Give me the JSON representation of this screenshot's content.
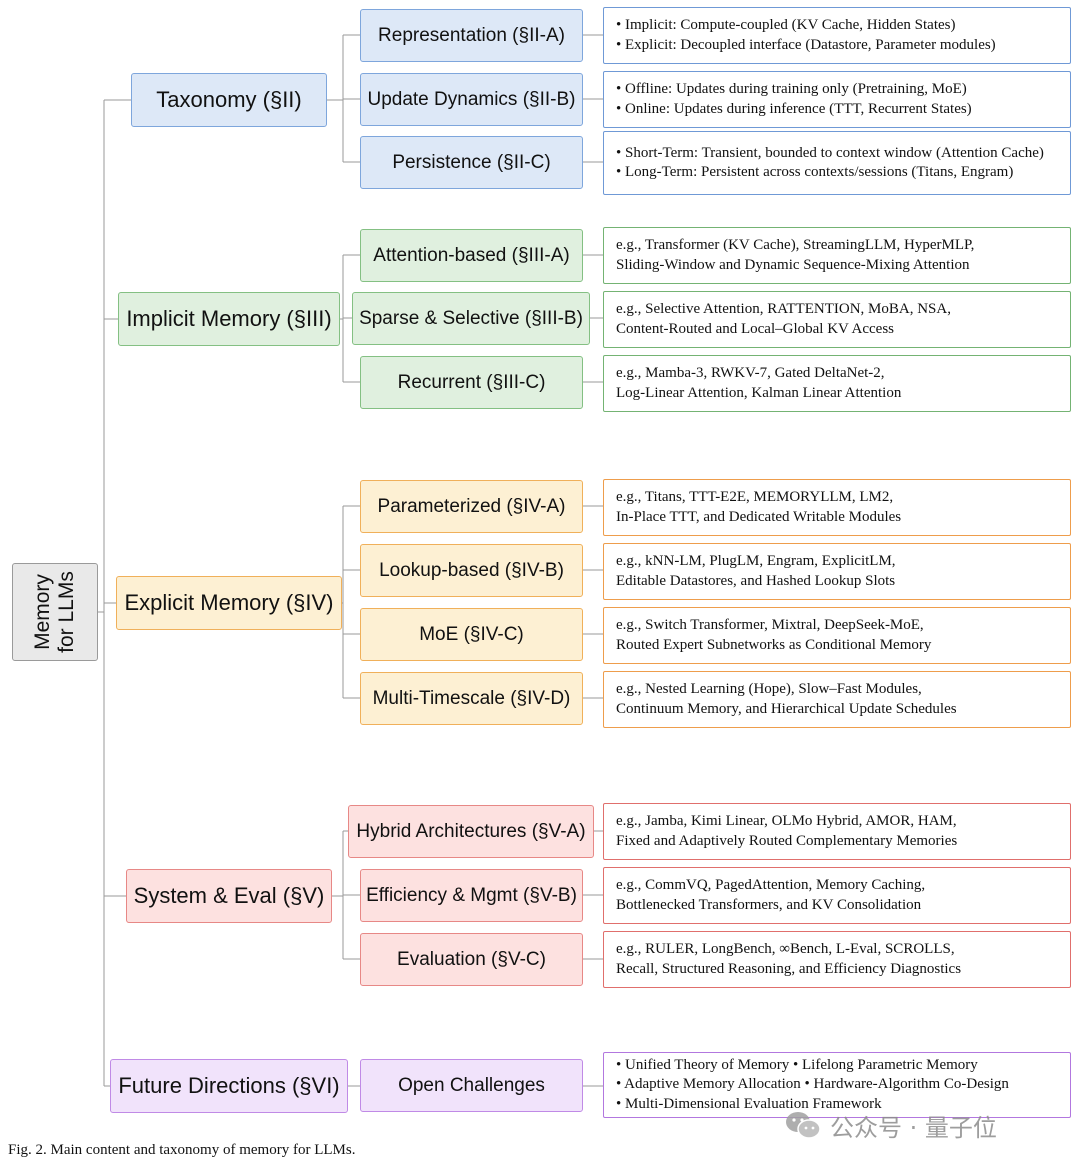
{
  "root": {
    "line1": "Memory",
    "line2": "for LLMs"
  },
  "branches": [
    {
      "id": "taxonomy",
      "label": "Taxonomy (§II)",
      "color": "blue",
      "children": [
        {
          "label": "Representation (§II-A)",
          "leaf": [
            "• Implicit: Compute-coupled (KV Cache, Hidden States)",
            "• Explicit: Decoupled interface (Datastore, Parameter modules)"
          ]
        },
        {
          "label": "Update Dynamics (§II-B)",
          "leaf": [
            "• Offline: Updates during training only (Pretraining, MoE)",
            "• Online: Updates during inference (TTT, Recurrent States)"
          ]
        },
        {
          "label": "Persistence (§II-C)",
          "leaf": [
            "• Short-Term: Transient, bounded to context window (Attention Cache)",
            "• Long-Term: Persistent across contexts/sessions (Titans, Engram)"
          ]
        }
      ]
    },
    {
      "id": "implicit",
      "label": "Implicit Memory (§III)",
      "color": "green",
      "children": [
        {
          "label": "Attention-based (§III-A)",
          "leaf": [
            "e.g., Transformer (KV Cache), StreamingLLM, HyperMLP,",
            "Sliding-Window and Dynamic Sequence-Mixing Attention"
          ]
        },
        {
          "label": "Sparse & Selective (§III-B)",
          "leaf": [
            "e.g., Selective Attention, RATTENTION, MoBA, NSA,",
            "Content-Routed and Local–Global KV Access"
          ]
        },
        {
          "label": "Recurrent (§III-C)",
          "leaf": [
            "e.g., Mamba-3, RWKV-7, Gated DeltaNet-2,",
            "Log-Linear Attention, Kalman Linear Attention"
          ]
        }
      ]
    },
    {
      "id": "explicit",
      "label": "Explicit Memory (§IV)",
      "color": "orange",
      "children": [
        {
          "label": "Parameterized (§IV-A)",
          "leaf": [
            "e.g., Titans, TTT-E2E, MEMORYLLM, LM2,",
            "In-Place TTT, and Dedicated Writable Modules"
          ]
        },
        {
          "label": "Lookup-based (§IV-B)",
          "leaf": [
            "e.g., kNN-LM, PlugLM, Engram, ExplicitLM,",
            "Editable Datastores, and Hashed Lookup Slots"
          ]
        },
        {
          "label": "MoE (§IV-C)",
          "leaf": [
            "e.g., Switch Transformer, Mixtral, DeepSeek-MoE,",
            "Routed Expert Subnetworks as Conditional Memory"
          ]
        },
        {
          "label": "Multi-Timescale (§IV-D)",
          "leaf": [
            "e.g., Nested Learning (Hope), Slow–Fast Modules,",
            "Continuum Memory, and Hierarchical Update Schedules"
          ]
        }
      ]
    },
    {
      "id": "system",
      "label": "System & Eval (§V)",
      "color": "red",
      "children": [
        {
          "label": "Hybrid Architectures (§V-A)",
          "leaf": [
            "e.g., Jamba, Kimi Linear, OLMo Hybrid, AMOR, HAM,",
            "Fixed and Adaptively Routed Complementary Memories"
          ]
        },
        {
          "label": "Efficiency & Mgmt (§V-B)",
          "leaf": [
            "e.g., CommVQ, PagedAttention, Memory Caching,",
            "Bottlenecked Transformers, and KV Consolidation"
          ]
        },
        {
          "label": "Evaluation (§V-C)",
          "leaf": [
            "e.g., RULER, LongBench, ∞Bench, L-Eval, SCROLLS,",
            "Recall, Structured Reasoning, and Efficiency Diagnostics"
          ]
        }
      ]
    },
    {
      "id": "future",
      "label": "Future Directions (§VI)",
      "color": "purple",
      "children": [
        {
          "label": "Open Challenges",
          "leaf": [
            "• Unified Theory of Memory • Lifelong Parametric Memory",
            "• Adaptive Memory Allocation • Hardware-Algorithm Co-Design",
            "• Multi-Dimensional Evaluation Framework"
          ]
        }
      ]
    }
  ],
  "caption": "Fig. 2.  Main content and taxonomy of memory for LLMs.",
  "watermark": {
    "text": "公众号 · 量子位",
    "icon": "wechat-logo-icon"
  },
  "colors": {
    "blue": {
      "fill": "#dde8f7",
      "border": "#7ea6dc"
    },
    "green": {
      "fill": "#e0f0df",
      "border": "#84c083"
    },
    "orange": {
      "fill": "#fdf0d3",
      "border": "#f0b05a"
    },
    "red": {
      "fill": "#fde1e0",
      "border": "#e78886"
    },
    "purple": {
      "fill": "#f1e3fb",
      "border": "#c08ae6"
    },
    "line": "#9a9a9a"
  }
}
